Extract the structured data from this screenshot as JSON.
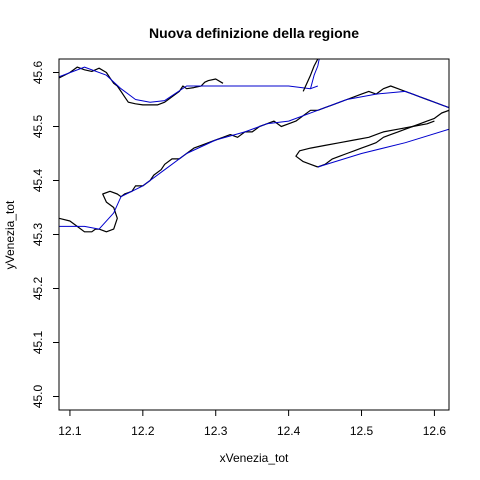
{
  "chart_data": {
    "type": "line",
    "title": "Nuova definizione della regione",
    "xlabel": "xVenezia_tot",
    "ylabel": "yVenezia_tot",
    "xlim": [
      12.085,
      12.62
    ],
    "ylim": [
      44.975,
      45.625
    ],
    "xticks": [
      "12.1",
      "12.2",
      "12.3",
      "12.4",
      "12.5",
      "12.6"
    ],
    "yticks": [
      "45.0",
      "45.1",
      "45.2",
      "45.3",
      "45.4",
      "45.5",
      "45.6"
    ],
    "grid": false,
    "legend": "none",
    "colors": {
      "detailed": "#000000",
      "simplified": "#0000cd"
    },
    "series": [
      {
        "style": "detailed",
        "x": [
          12.085,
          12.1,
          12.11,
          12.12,
          12.13,
          12.14,
          12.15,
          12.155,
          12.16,
          12.165,
          12.17,
          12.175,
          12.18,
          12.19,
          12.2,
          12.21,
          12.22,
          12.23,
          12.235,
          12.24,
          12.25,
          12.255,
          12.26,
          12.27,
          12.28,
          12.285,
          12.29,
          12.3,
          12.31
        ],
        "y": [
          45.59,
          45.6,
          45.61,
          45.605,
          45.602,
          45.608,
          45.6,
          45.59,
          45.58,
          45.575,
          45.565,
          45.555,
          45.545,
          45.542,
          45.54,
          45.54,
          45.54,
          45.545,
          45.55,
          45.555,
          45.565,
          45.575,
          45.57,
          45.572,
          45.575,
          45.582,
          45.585,
          45.588,
          45.58
        ]
      },
      {
        "style": "simplified",
        "x": [
          12.085,
          12.12,
          12.15,
          12.17,
          12.19,
          12.21,
          12.23,
          12.26,
          12.32,
          12.36,
          12.4,
          12.43,
          12.44
        ],
        "y": [
          45.592,
          45.61,
          45.595,
          45.57,
          45.55,
          45.545,
          45.548,
          45.575,
          45.575,
          45.575,
          45.575,
          45.57,
          45.575
        ]
      },
      {
        "style": "detailed",
        "x": [
          12.42,
          12.425,
          12.43,
          12.435,
          12.44
        ],
        "y": [
          45.565,
          45.58,
          45.595,
          45.612,
          45.625
        ]
      },
      {
        "style": "simplified",
        "x": [
          12.43,
          12.435,
          12.44,
          12.442
        ],
        "y": [
          45.57,
          45.595,
          45.612,
          45.625
        ]
      },
      {
        "style": "detailed",
        "x": [
          12.085,
          12.1,
          12.11,
          12.12,
          12.13,
          12.135,
          12.14,
          12.15,
          12.16,
          12.165,
          12.16,
          12.15,
          12.145,
          12.155,
          12.165,
          12.17,
          12.175,
          12.185,
          12.19,
          12.2,
          12.21,
          12.215,
          12.225,
          12.23,
          12.24,
          12.25,
          12.255,
          12.26,
          12.27,
          12.28,
          12.29,
          12.3,
          12.31,
          12.32,
          12.33,
          12.34,
          12.35,
          12.36,
          12.37,
          12.38,
          12.39,
          12.4,
          12.41,
          12.42,
          12.43,
          12.44,
          12.45,
          12.46,
          12.47,
          12.48,
          12.49,
          12.5,
          12.51,
          12.52,
          12.53,
          12.54,
          12.55,
          12.56,
          12.57,
          12.58,
          12.59,
          12.6,
          12.61,
          12.62
        ],
        "y": [
          45.33,
          45.325,
          45.315,
          45.305,
          45.305,
          45.31,
          45.31,
          45.305,
          45.31,
          45.33,
          45.35,
          45.36,
          45.375,
          45.38,
          45.375,
          45.37,
          45.375,
          45.38,
          45.39,
          45.39,
          45.4,
          45.41,
          45.42,
          45.43,
          45.44,
          45.44,
          45.445,
          45.45,
          45.46,
          45.465,
          45.47,
          45.475,
          45.48,
          45.485,
          45.48,
          45.49,
          45.49,
          45.5,
          45.505,
          45.51,
          45.5,
          45.505,
          45.51,
          45.52,
          45.53,
          45.53,
          45.535,
          45.54,
          45.545,
          45.55,
          45.555,
          45.56,
          45.565,
          45.56,
          45.57,
          45.575,
          45.57,
          45.565,
          45.56,
          45.555,
          45.55,
          45.545,
          45.54,
          45.535
        ]
      },
      {
        "style": "simplified",
        "x": [
          12.085,
          12.12,
          12.14,
          12.16,
          12.17,
          12.2,
          12.23,
          12.26,
          12.3,
          12.34,
          12.37,
          12.4,
          12.44,
          12.48,
          12.52,
          12.56,
          12.6,
          12.62
        ],
        "y": [
          45.315,
          45.315,
          45.31,
          45.34,
          45.37,
          45.39,
          45.42,
          45.45,
          45.475,
          45.49,
          45.505,
          45.51,
          45.53,
          45.55,
          45.56,
          45.565,
          45.545,
          45.535
        ]
      },
      {
        "style": "detailed",
        "x": [
          12.44,
          12.45,
          12.46,
          12.47,
          12.48,
          12.49,
          12.5,
          12.51,
          12.52,
          12.53,
          12.54,
          12.55,
          12.56,
          12.57,
          12.58,
          12.59,
          12.6,
          12.61,
          12.62
        ],
        "y": [
          45.425,
          45.43,
          45.44,
          45.445,
          45.45,
          45.455,
          45.46,
          45.465,
          45.47,
          45.48,
          45.485,
          45.49,
          45.495,
          45.5,
          45.505,
          45.51,
          45.515,
          45.525,
          45.53
        ]
      },
      {
        "style": "simplified",
        "x": [
          12.44,
          12.5,
          12.56,
          12.62
        ],
        "y": [
          45.425,
          45.45,
          45.47,
          45.495
        ]
      },
      {
        "style": "detailed",
        "x": [
          12.44,
          12.43,
          12.42,
          12.41,
          12.415,
          12.43,
          12.45,
          12.47,
          12.49,
          12.51,
          12.53,
          12.55,
          12.57,
          12.59,
          12.6
        ],
        "y": [
          45.425,
          45.43,
          45.435,
          45.445,
          45.455,
          45.46,
          45.465,
          45.47,
          45.475,
          45.48,
          45.49,
          45.495,
          45.5,
          45.505,
          45.51
        ]
      }
    ]
  }
}
